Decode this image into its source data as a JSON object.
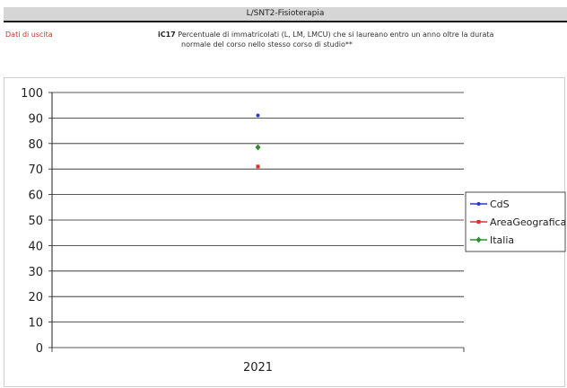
{
  "header": {
    "course_title": "L/SNT2-Fisioterapia"
  },
  "section": {
    "label": "Dati di uscita"
  },
  "indicator": {
    "code": "iC17",
    "description_line1": "Percentuale di immatricolati (L, LM, LMCU) che si laureano entro un anno oltre la durata",
    "description_line2": "normale del corso nello stesso corso di studio**"
  },
  "chart_data": {
    "type": "line",
    "categories": [
      "2021"
    ],
    "series": [
      {
        "name": "CdS",
        "values": [
          91
        ],
        "color": "#2e35d8",
        "marker": "circle"
      },
      {
        "name": "AreaGeografica",
        "values": [
          71
        ],
        "color": "#e0302a",
        "marker": "square"
      },
      {
        "name": "Italia",
        "values": [
          78.5
        ],
        "color": "#2f8f2f",
        "marker": "diamond"
      }
    ],
    "ylim": [
      0,
      100
    ],
    "yticks": [
      "0",
      "10",
      "20",
      "30",
      "40",
      "50",
      "60",
      "70",
      "80",
      "90",
      "100"
    ],
    "grid": true,
    "legend": "right",
    "title": "",
    "xlabel": "",
    "ylabel": ""
  }
}
